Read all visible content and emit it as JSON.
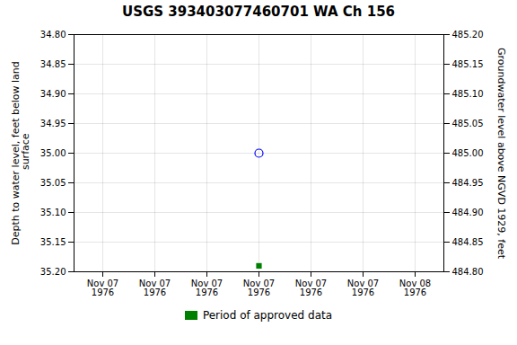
{
  "chart_data": {
    "type": "scatter",
    "title": "USGS 393403077460701 WA Ch 156",
    "ylabel": "Depth to water level, feet below land\n surface",
    "y2label": "Groundwater level above NGVD 1929, feet",
    "categories": [
      "Nov 07\n1976",
      "Nov 07\n1976",
      "Nov 07\n1976",
      "Nov 07\n1976",
      "Nov 07\n1976",
      "Nov 07\n1976",
      "Nov 08\n1976"
    ],
    "series": [
      {
        "color": "blue",
        "marker": "open_circle",
        "values": [
          null,
          null,
          null,
          35.0,
          null,
          null,
          null
        ]
      },
      {
        "name": "Period of approved data",
        "color": "#008000",
        "marker": "square",
        "values": [
          null,
          null,
          null,
          35.19,
          null,
          null,
          null
        ]
      }
    ],
    "ylim": [
      35.2,
      34.8
    ],
    "yticks": [
      {
        "value": 34.8,
        "label": "34.80"
      },
      {
        "value": 34.85,
        "label": "34.85"
      },
      {
        "value": 34.9,
        "label": "34.90"
      },
      {
        "value": 34.95,
        "label": "34.95"
      },
      {
        "value": 35.0,
        "label": "35.00"
      },
      {
        "value": 35.05,
        "label": "35.05"
      },
      {
        "value": 35.1,
        "label": "35.10"
      },
      {
        "value": 35.15,
        "label": "35.15"
      },
      {
        "value": 35.2,
        "label": "35.20"
      }
    ],
    "y2lim": [
      484.8,
      485.2
    ],
    "y2ticks": [
      {
        "value": 485.2,
        "label": "485.20"
      },
      {
        "value": 485.15,
        "label": "485.15"
      },
      {
        "value": 485.1,
        "label": "485.10"
      },
      {
        "value": 485.05,
        "label": "485.05"
      },
      {
        "value": 485.0,
        "label": "485.00"
      },
      {
        "value": 484.95,
        "label": "484.95"
      },
      {
        "value": 484.9,
        "label": "484.90"
      },
      {
        "value": 484.85,
        "label": "484.85"
      },
      {
        "value": 484.8,
        "label": "484.80"
      }
    ],
    "grid": true,
    "legend": "bottom"
  }
}
